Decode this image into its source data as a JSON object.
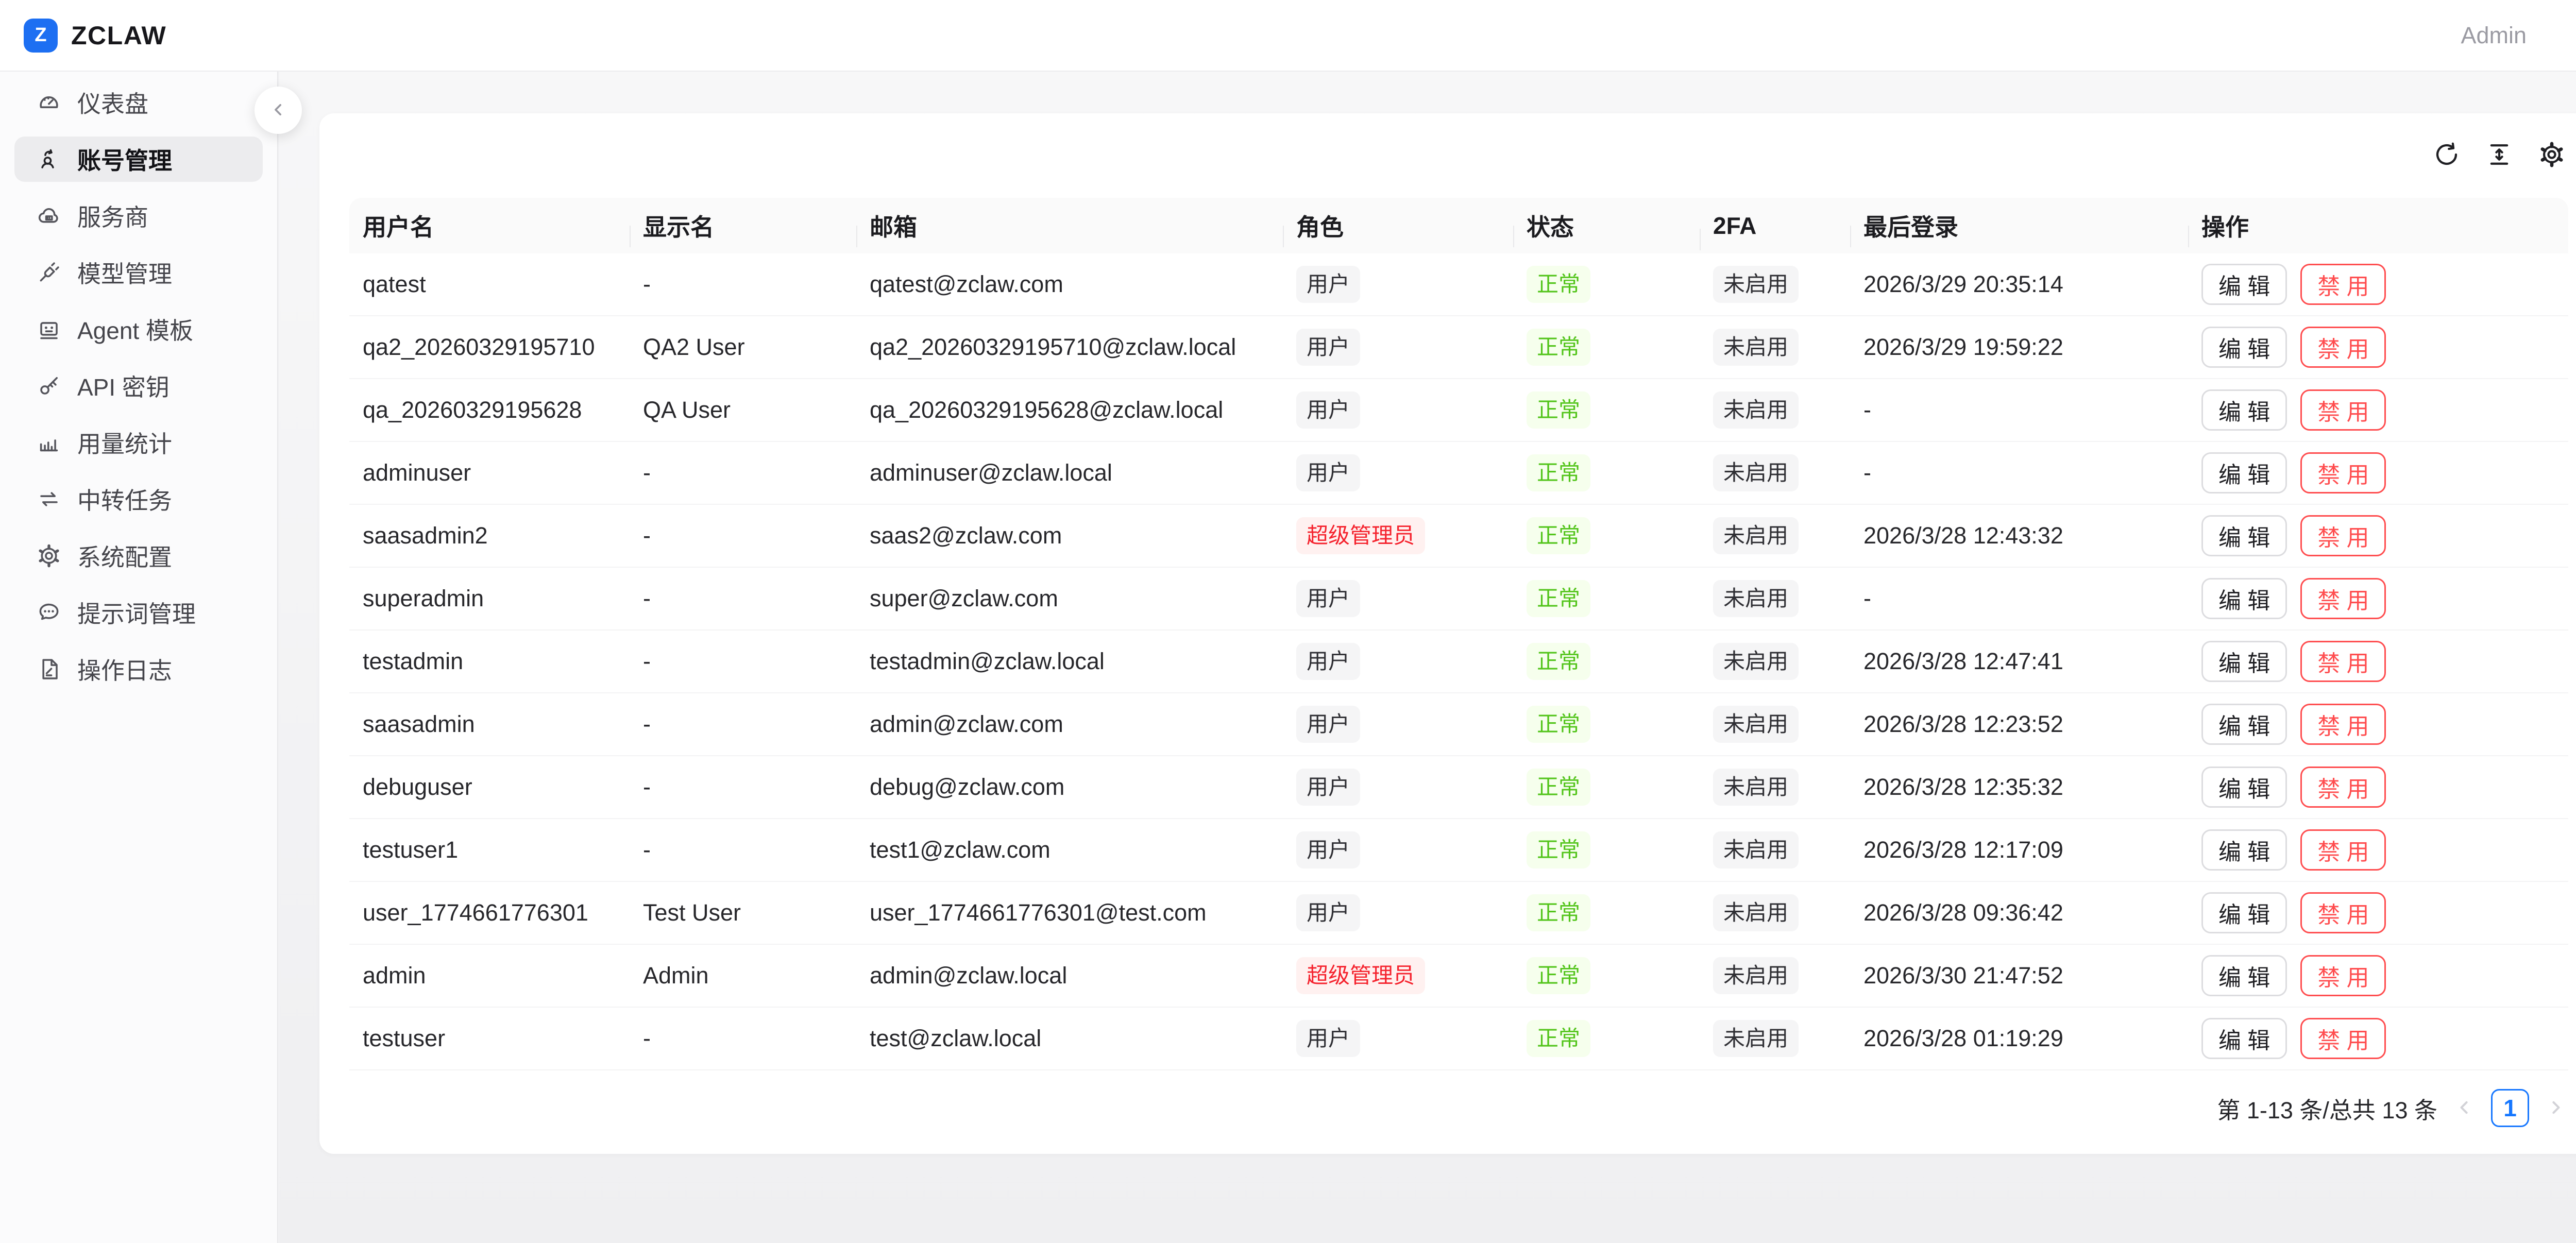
{
  "brand": {
    "logo_letter": "Z",
    "name": "ZCLAW"
  },
  "topbar": {
    "account_label": "Admin"
  },
  "sidebar": {
    "items": [
      {
        "key": "dashboard",
        "icon": "dashboard-icon",
        "label": "仪表盘",
        "active": false
      },
      {
        "key": "account-management",
        "icon": "account-management-icon",
        "label": "账号管理",
        "active": true
      },
      {
        "key": "providers",
        "icon": "provider-icon",
        "label": "服务商",
        "active": false
      },
      {
        "key": "model-management",
        "icon": "model-management-icon",
        "label": "模型管理",
        "active": false
      },
      {
        "key": "agent-templates",
        "icon": "agent-template-icon",
        "label": "Agent 模板",
        "active": false
      },
      {
        "key": "api-keys",
        "icon": "api-key-icon",
        "label": "API 密钥",
        "active": false
      },
      {
        "key": "usage-stats",
        "icon": "usage-stats-icon",
        "label": "用量统计",
        "active": false
      },
      {
        "key": "relay-tasks",
        "icon": "relay-task-icon",
        "label": "中转任务",
        "active": false
      },
      {
        "key": "system-config",
        "icon": "system-config-icon",
        "label": "系统配置",
        "active": false
      },
      {
        "key": "prompt-management",
        "icon": "prompt-management-icon",
        "label": "提示词管理",
        "active": false
      },
      {
        "key": "operation-logs",
        "icon": "operation-log-icon",
        "label": "操作日志",
        "active": false
      }
    ]
  },
  "toolbar": {
    "icons": [
      {
        "key": "refresh",
        "name": "refresh-icon"
      },
      {
        "key": "column-height",
        "name": "column-height-icon"
      },
      {
        "key": "settings",
        "name": "table-settings-icon"
      }
    ]
  },
  "table": {
    "columns": [
      "用户名",
      "显示名",
      "邮箱",
      "角色",
      "状态",
      "2FA",
      "最后登录",
      "操作"
    ],
    "actions": {
      "edit": "编 辑",
      "disable": "禁 用"
    },
    "rows": [
      {
        "username": "qatest",
        "display_name": "-",
        "email": "qatest@zclaw.com",
        "role_label": "用户",
        "role_variant": "user",
        "status": "正常",
        "twofa": "未启用",
        "last_login": "2026/3/29 20:35:14"
      },
      {
        "username": "qa2_20260329195710",
        "display_name": "QA2 User",
        "email": "qa2_20260329195710@zclaw.local",
        "role_label": "用户",
        "role_variant": "user",
        "status": "正常",
        "twofa": "未启用",
        "last_login": "2026/3/29 19:59:22"
      },
      {
        "username": "qa_20260329195628",
        "display_name": "QA User",
        "email": "qa_20260329195628@zclaw.local",
        "role_label": "用户",
        "role_variant": "user",
        "status": "正常",
        "twofa": "未启用",
        "last_login": "-"
      },
      {
        "username": "adminuser",
        "display_name": "-",
        "email": "adminuser@zclaw.local",
        "role_label": "用户",
        "role_variant": "user",
        "status": "正常",
        "twofa": "未启用",
        "last_login": "-"
      },
      {
        "username": "saasadmin2",
        "display_name": "-",
        "email": "saas2@zclaw.com",
        "role_label": "超级管理员",
        "role_variant": "super",
        "status": "正常",
        "twofa": "未启用",
        "last_login": "2026/3/28 12:43:32"
      },
      {
        "username": "superadmin",
        "display_name": "-",
        "email": "super@zclaw.com",
        "role_label": "用户",
        "role_variant": "user",
        "status": "正常",
        "twofa": "未启用",
        "last_login": "-"
      },
      {
        "username": "testadmin",
        "display_name": "-",
        "email": "testadmin@zclaw.local",
        "role_label": "用户",
        "role_variant": "user",
        "status": "正常",
        "twofa": "未启用",
        "last_login": "2026/3/28 12:47:41"
      },
      {
        "username": "saasadmin",
        "display_name": "-",
        "email": "admin@zclaw.com",
        "role_label": "用户",
        "role_variant": "user",
        "status": "正常",
        "twofa": "未启用",
        "last_login": "2026/3/28 12:23:52"
      },
      {
        "username": "debuguser",
        "display_name": "-",
        "email": "debug@zclaw.com",
        "role_label": "用户",
        "role_variant": "user",
        "status": "正常",
        "twofa": "未启用",
        "last_login": "2026/3/28 12:35:32"
      },
      {
        "username": "testuser1",
        "display_name": "-",
        "email": "test1@zclaw.com",
        "role_label": "用户",
        "role_variant": "user",
        "status": "正常",
        "twofa": "未启用",
        "last_login": "2026/3/28 12:17:09"
      },
      {
        "username": "user_1774661776301",
        "display_name": "Test User",
        "email": "user_1774661776301@test.com",
        "role_label": "用户",
        "role_variant": "user",
        "status": "正常",
        "twofa": "未启用",
        "last_login": "2026/3/28 09:36:42"
      },
      {
        "username": "admin",
        "display_name": "Admin",
        "email": "admin@zclaw.local",
        "role_label": "超级管理员",
        "role_variant": "super",
        "status": "正常",
        "twofa": "未启用",
        "last_login": "2026/3/30 21:47:52"
      },
      {
        "username": "testuser",
        "display_name": "-",
        "email": "test@zclaw.local",
        "role_label": "用户",
        "role_variant": "user",
        "status": "正常",
        "twofa": "未启用",
        "last_login": "2026/3/28 01:19:29"
      }
    ]
  },
  "pagination": {
    "summary": "第 1-13 条/总共 13 条",
    "current_page": "1"
  },
  "colors": {
    "accent": "#1677ff",
    "danger": "#ff4d4f",
    "role_super_text": "#f5222d",
    "role_super_bg": "#fff1f0",
    "status_ok_text": "#52c41a",
    "status_ok_bg": "#f6ffed",
    "neutral_badge_bg": "#f5f5f6",
    "logo_bg": "#1d6ff2"
  }
}
